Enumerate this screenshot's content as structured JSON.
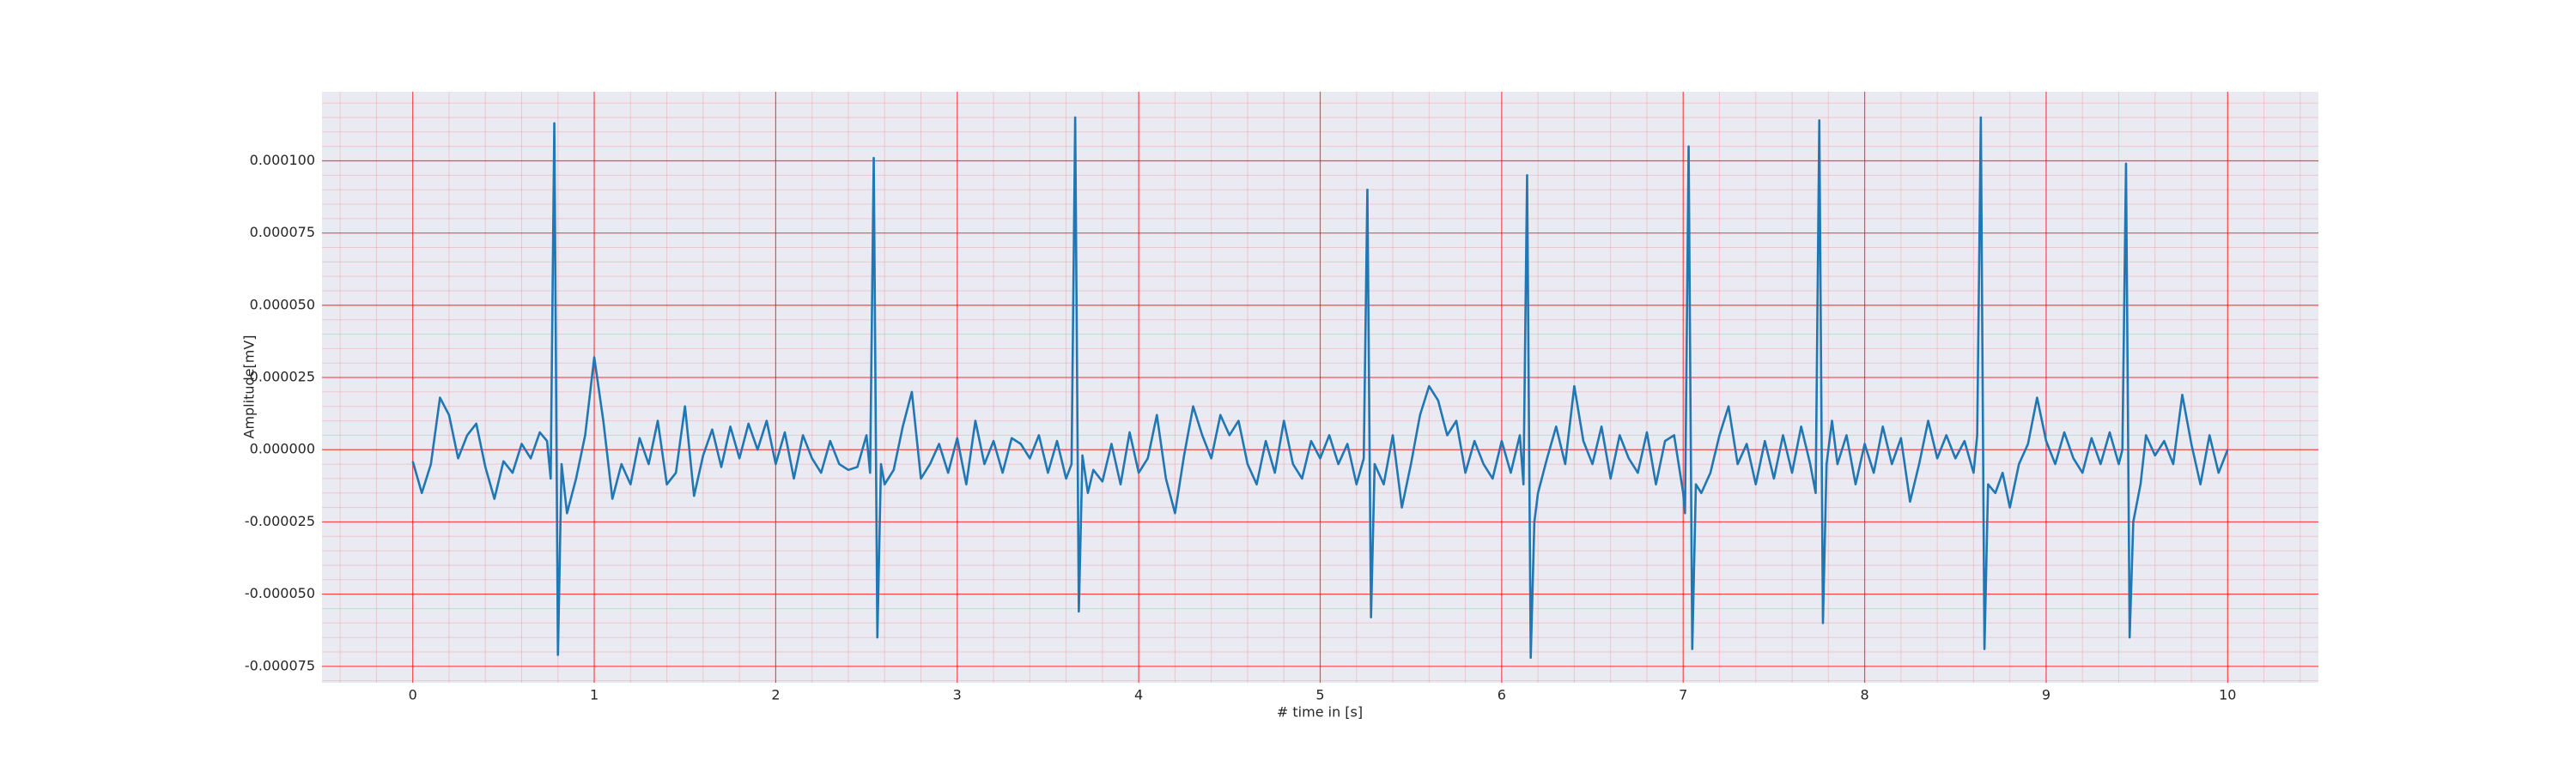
{
  "chart_data": {
    "type": "line",
    "xlabel": "# time in [s]",
    "ylabel": "Amplitude[mV]",
    "grid": true,
    "background": "#eaeaf2",
    "grid_color": "#ff0000",
    "xlim": [
      -0.5,
      10.5
    ],
    "ylim": [
      -8.07e-05,
      0.0001239
    ],
    "xticks": [
      0,
      1,
      2,
      3,
      4,
      5,
      6,
      7,
      8,
      9,
      10
    ],
    "yticks": [
      {
        "value": -7.5e-05,
        "label": "-0.000075"
      },
      {
        "value": -5e-05,
        "label": "-0.000050"
      },
      {
        "value": -2.5e-05,
        "label": "-0.000025"
      },
      {
        "value": 0,
        "label": "0.000000"
      },
      {
        "value": 2.5e-05,
        "label": "0.000025"
      },
      {
        "value": 5e-05,
        "label": "0.000050"
      },
      {
        "value": 7.5e-05,
        "label": "0.000075"
      },
      {
        "value": 0.0001,
        "label": "0.000100"
      }
    ],
    "series": [
      {
        "color": "#1f77b4",
        "x": [
          0,
          0.05,
          0.1,
          0.15,
          0.2,
          0.25,
          0.3,
          0.35,
          0.4,
          0.45,
          0.5,
          0.55,
          0.6,
          0.65,
          0.7,
          0.74,
          0.76,
          0.78,
          0.8,
          0.82,
          0.85,
          0.9,
          0.95,
          1.0,
          1.05,
          1.1,
          1.15,
          1.2,
          1.25,
          1.3,
          1.35,
          1.4,
          1.45,
          1.5,
          1.55,
          1.6,
          1.65,
          1.7,
          1.75,
          1.8,
          1.85,
          1.9,
          1.95,
          2.0,
          2.05,
          2.1,
          2.15,
          2.2,
          2.25,
          2.3,
          2.35,
          2.4,
          2.45,
          2.5,
          2.52,
          2.54,
          2.56,
          2.58,
          2.6,
          2.65,
          2.7,
          2.75,
          2.8,
          2.85,
          2.9,
          2.95,
          3.0,
          3.05,
          3.1,
          3.15,
          3.2,
          3.25,
          3.3,
          3.35,
          3.4,
          3.45,
          3.5,
          3.55,
          3.6,
          3.63,
          3.65,
          3.67,
          3.69,
          3.72,
          3.75,
          3.8,
          3.85,
          3.9,
          3.95,
          4.0,
          4.05,
          4.1,
          4.15,
          4.2,
          4.25,
          4.3,
          4.35,
          4.4,
          4.45,
          4.5,
          4.55,
          4.6,
          4.65,
          4.7,
          4.75,
          4.8,
          4.85,
          4.9,
          4.95,
          5.0,
          5.05,
          5.1,
          5.15,
          5.2,
          5.24,
          5.26,
          5.28,
          5.3,
          5.35,
          5.4,
          5.45,
          5.5,
          5.55,
          5.6,
          5.65,
          5.7,
          5.75,
          5.8,
          5.85,
          5.9,
          5.95,
          6.0,
          6.05,
          6.1,
          6.12,
          6.14,
          6.16,
          6.18,
          6.2,
          6.25,
          6.3,
          6.35,
          6.4,
          6.45,
          6.5,
          6.55,
          6.6,
          6.65,
          6.7,
          6.75,
          6.8,
          6.85,
          6.9,
          6.95,
          7.0,
          7.01,
          7.03,
          7.05,
          7.07,
          7.1,
          7.15,
          7.2,
          7.25,
          7.3,
          7.35,
          7.4,
          7.45,
          7.5,
          7.55,
          7.6,
          7.65,
          7.7,
          7.73,
          7.75,
          7.77,
          7.79,
          7.82,
          7.85,
          7.9,
          7.95,
          8.0,
          8.05,
          8.1,
          8.15,
          8.2,
          8.25,
          8.3,
          8.35,
          8.4,
          8.45,
          8.5,
          8.55,
          8.6,
          8.62,
          8.64,
          8.66,
          8.68,
          8.72,
          8.76,
          8.8,
          8.85,
          8.9,
          8.95,
          9.0,
          9.05,
          9.1,
          9.15,
          9.2,
          9.25,
          9.3,
          9.35,
          9.4,
          9.42,
          9.44,
          9.46,
          9.48,
          9.52,
          9.55,
          9.6,
          9.65,
          9.7,
          9.75,
          9.8,
          9.85,
          9.9,
          9.95,
          10.0
        ],
        "values": [
          -4e-06,
          -1.5e-05,
          -5e-06,
          1.8e-05,
          1.2e-05,
          -3e-06,
          5e-06,
          9e-06,
          -6e-06,
          -1.7e-05,
          -4e-06,
          -8e-06,
          2e-06,
          -3e-06,
          6e-06,
          3e-06,
          -1e-05,
          0.000113,
          -7.1e-05,
          -5e-06,
          -2.2e-05,
          -1e-05,
          5e-06,
          3.2e-05,
          1e-05,
          -1.7e-05,
          -5e-06,
          -1.2e-05,
          4e-06,
          -5e-06,
          1e-05,
          -1.2e-05,
          -8e-06,
          1.5e-05,
          -1.6e-05,
          -2e-06,
          7e-06,
          -6e-06,
          8e-06,
          -3e-06,
          9e-06,
          0,
          1e-05,
          -5e-06,
          6e-06,
          -1e-05,
          5e-06,
          -3e-06,
          -8e-06,
          3e-06,
          -5e-06,
          -7e-06,
          -6e-06,
          5e-06,
          -8e-06,
          0.000101,
          -6.5e-05,
          -5e-06,
          -1.2e-05,
          -7e-06,
          8e-06,
          2e-05,
          -1e-05,
          -5e-06,
          2e-06,
          -8e-06,
          4e-06,
          -1.2e-05,
          1e-05,
          -5e-06,
          3e-06,
          -8e-06,
          4e-06,
          2e-06,
          -3e-06,
          5e-06,
          -8e-06,
          3e-06,
          -1e-05,
          -5e-06,
          0.000115,
          -5.6e-05,
          -2e-06,
          -1.5e-05,
          -7e-06,
          -1.1e-05,
          2e-06,
          -1.2e-05,
          6e-06,
          -8e-06,
          -3e-06,
          1.2e-05,
          -1e-05,
          -2.2e-05,
          -2e-06,
          1.5e-05,
          5e-06,
          -3e-06,
          1.2e-05,
          5e-06,
          1e-05,
          -5e-06,
          -1.2e-05,
          3e-06,
          -8e-06,
          1e-05,
          -5e-06,
          -1e-05,
          3e-06,
          -3e-06,
          5e-06,
          -5e-06,
          2e-06,
          -1.2e-05,
          -3e-06,
          9e-05,
          -5.8e-05,
          -5e-06,
          -1.2e-05,
          5e-06,
          -2e-05,
          -5e-06,
          1.2e-05,
          2.2e-05,
          1.7e-05,
          5e-06,
          1e-05,
          -8e-06,
          3e-06,
          -5e-06,
          -1e-05,
          3e-06,
          -8e-06,
          5e-06,
          -1.2e-05,
          9.5e-05,
          -7.2e-05,
          -2.5e-05,
          -1.5e-05,
          -3e-06,
          8e-06,
          -5e-06,
          2.2e-05,
          3e-06,
          -5e-06,
          8e-06,
          -1e-05,
          5e-06,
          -3e-06,
          -8e-06,
          6e-06,
          -1.2e-05,
          3e-06,
          5e-06,
          -1.5e-05,
          -2.2e-05,
          0.000105,
          -6.9e-05,
          -1.2e-05,
          -1.5e-05,
          -8e-06,
          5e-06,
          1.5e-05,
          -5e-06,
          2e-06,
          -1.2e-05,
          3e-06,
          -1e-05,
          5e-06,
          -8e-06,
          8e-06,
          -5e-06,
          -1.5e-05,
          0.000114,
          -6e-05,
          -5e-06,
          1e-05,
          -5e-06,
          5e-06,
          -1.2e-05,
          2e-06,
          -8e-06,
          8e-06,
          -5e-06,
          4e-06,
          -1.8e-05,
          -5e-06,
          1e-05,
          -3e-06,
          5e-06,
          -3e-06,
          3e-06,
          -8e-06,
          5e-06,
          0.000115,
          -6.9e-05,
          -1.2e-05,
          -1.5e-05,
          -8e-06,
          -2e-05,
          -5e-06,
          2e-06,
          1.8e-05,
          3e-06,
          -5e-06,
          6e-06,
          -3e-06,
          -8e-06,
          4e-06,
          -5e-06,
          6e-06,
          -5e-06,
          0,
          9.9e-05,
          -6.5e-05,
          -2.5e-05,
          -1.2e-05,
          5e-06,
          -2e-06,
          3e-06,
          -5e-06,
          1.9e-05,
          2e-06,
          -1.2e-05,
          5e-06,
          -8e-06,
          0
        ]
      }
    ]
  }
}
